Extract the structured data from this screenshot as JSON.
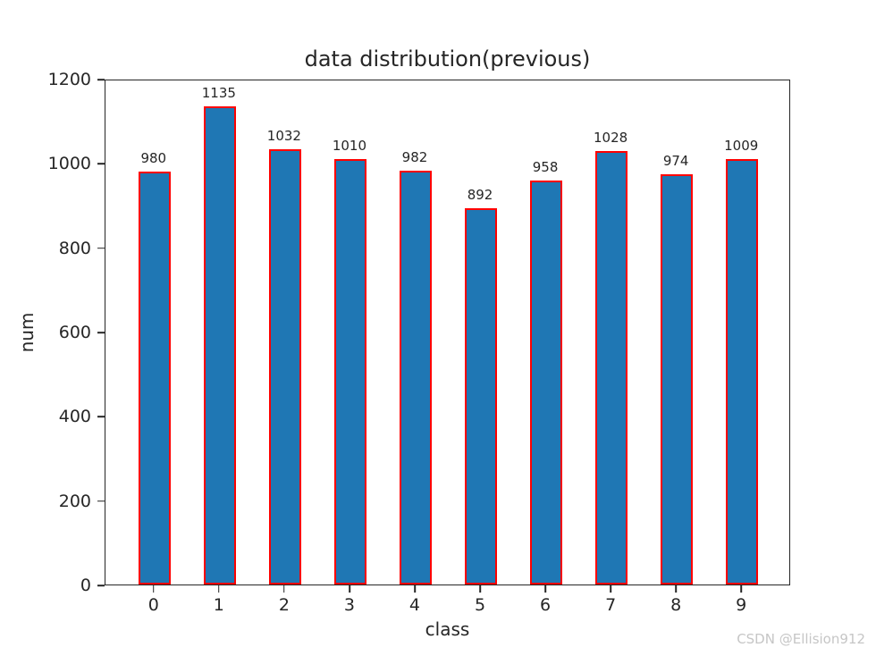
{
  "watermark": "CSDN @Ellision912",
  "chart_data": {
    "type": "bar",
    "title": "data distribution(previous)",
    "xlabel": "class",
    "ylabel": "num",
    "categories": [
      "0",
      "1",
      "2",
      "3",
      "4",
      "5",
      "6",
      "7",
      "8",
      "9"
    ],
    "values": [
      980,
      1135,
      1032,
      1010,
      982,
      892,
      958,
      1028,
      974,
      1009
    ],
    "ylim": [
      0,
      1200
    ],
    "yticks": [
      0,
      200,
      400,
      600,
      800,
      1000,
      1200
    ],
    "grid": false,
    "legend_position": "none",
    "bar_fill_color": "#1f77b4",
    "bar_edge_color": "#ff0000",
    "text_color": "#262626",
    "watermark_color": "#c6c6c6"
  }
}
